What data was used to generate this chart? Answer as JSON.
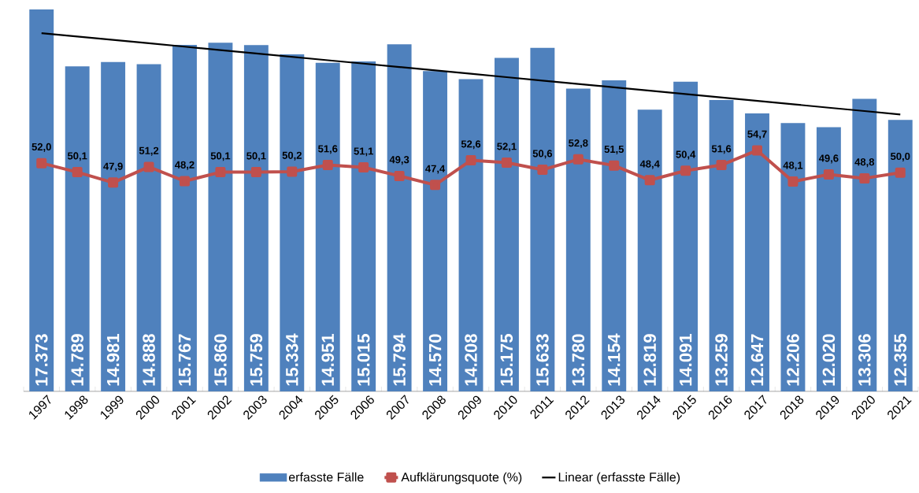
{
  "chart_data": {
    "type": "bar",
    "categories": [
      "1997",
      "1998",
      "1999",
      "2000",
      "2001",
      "2002",
      "2003",
      "2004",
      "2005",
      "2006",
      "2007",
      "2008",
      "2009",
      "2010",
      "2011",
      "2012",
      "2013",
      "2014",
      "2015",
      "2016",
      "2017",
      "2018",
      "2019",
      "2020",
      "2021"
    ],
    "series": [
      {
        "name": "erfasste Fälle",
        "color": "#4f81bd",
        "values": [
          17373,
          14789,
          14981,
          14888,
          15767,
          15860,
          15759,
          15334,
          14951,
          15015,
          15794,
          14570,
          14208,
          15175,
          15633,
          13780,
          14154,
          12819,
          14091,
          13259,
          12647,
          12206,
          12020,
          13306,
          12355
        ],
        "value_labels": [
          "17.373",
          "14.789",
          "14.981",
          "14.888",
          "15.767",
          "15.860",
          "15.759",
          "15.334",
          "14.951",
          "15.015",
          "15.794",
          "14.570",
          "14.208",
          "15.175",
          "15.633",
          "13.780",
          "14.154",
          "12.819",
          "14.091",
          "13.259",
          "12.647",
          "12.206",
          "12.020",
          "13.306",
          "12.355"
        ]
      },
      {
        "name": "Aufklärungsquote (%)",
        "type": "line",
        "axis": "y2",
        "color": "#c0504d",
        "marker": "square",
        "values": [
          52.0,
          50.1,
          47.9,
          51.2,
          48.2,
          50.1,
          50.1,
          50.2,
          51.6,
          51.1,
          49.3,
          47.4,
          52.6,
          52.1,
          50.6,
          52.8,
          51.5,
          48.4,
          50.4,
          51.6,
          54.7,
          48.1,
          49.6,
          48.8,
          50.0
        ],
        "value_labels": [
          "52,0",
          "50,1",
          "47,9",
          "51,2",
          "48,2",
          "50,1",
          "50,1",
          "50,2",
          "51,6",
          "51,1",
          "49,3",
          "47,4",
          "52,6",
          "52,1",
          "50,6",
          "52,8",
          "51,5",
          "48,4",
          "50,4",
          "51,6",
          "54,7",
          "48,1",
          "49,6",
          "48,8",
          "50,0"
        ]
      },
      {
        "name": "Linear (erfasste Fälle)",
        "type": "line",
        "color": "#000000",
        "values": [
          16300,
          16146,
          15992,
          15838,
          15683,
          15529,
          15375,
          15221,
          15067,
          14913,
          14758,
          14604,
          14450,
          14296,
          14142,
          13988,
          13833,
          13679,
          13525,
          13371,
          13217,
          13063,
          12908,
          12754,
          12600
        ]
      }
    ],
    "tick_labels": "x",
    "legend": "bottom",
    "grid": false
  }
}
